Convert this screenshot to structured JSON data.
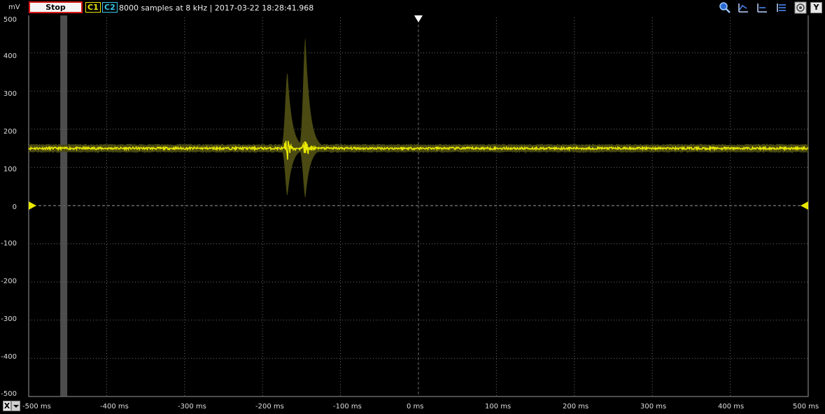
{
  "toolbar": {
    "y_unit": "mV",
    "stop_label": "Stop",
    "c1_label": "C1",
    "c2_label": "C2",
    "status": "8000 samples at 8 kHz | 2017-03-22 18:28:41.968",
    "y_button": "Y",
    "icons": [
      "zoom-icon",
      "cursor-a-icon",
      "cursor-b-icon",
      "settings-list-icon",
      "screenshot-icon"
    ]
  },
  "x_axis": {
    "button": "X",
    "labels": [
      "-500 ms",
      "-400 ms",
      "-300 ms",
      "-200 ms",
      "-100 ms",
      "0 ms",
      "100 ms",
      "200 ms",
      "300 ms",
      "400 ms",
      "500 ms"
    ]
  },
  "y_axis": {
    "labels": [
      "500",
      "400",
      "300",
      "200",
      "100",
      "0",
      "-100",
      "-200",
      "-300",
      "-400",
      "-500"
    ]
  },
  "colors": {
    "trace": "#e8e800",
    "envelope": "#4a4a12",
    "grid": "#6a6a6a",
    "stop_border": "#d81818",
    "c2": "#38c6e6"
  },
  "chart_data": {
    "type": "line",
    "x_unit": "ms",
    "y_unit": "mV",
    "xlim": [
      -500,
      500
    ],
    "ylim": [
      -500,
      500
    ],
    "grid": true,
    "series": [
      {
        "channel": "C1",
        "baseline_mV": 150,
        "envelope_mV": [
          140,
          160
        ],
        "spikes": [
          {
            "x": -168,
            "peak_max": 350,
            "peak_min": 25
          },
          {
            "x": -145,
            "peak_max": 440,
            "peak_min": 20
          }
        ]
      }
    ],
    "trigger_x": 0,
    "ground_y": 0,
    "marker_x": -455
  }
}
